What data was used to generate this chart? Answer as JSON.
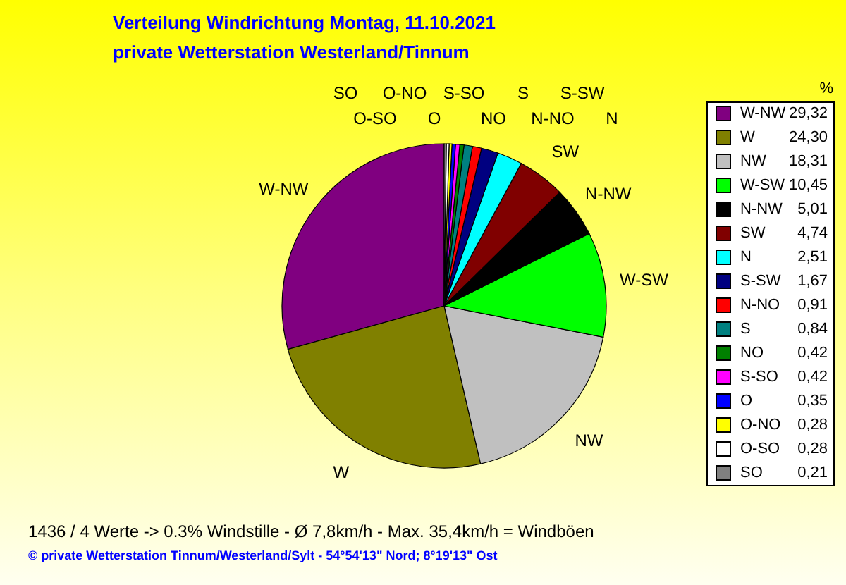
{
  "chart_data": {
    "type": "pie",
    "title": "Verteilung Windrichtung   Montag, 11.10.2021",
    "subtitle": "private Wetterstation Westerland/Tinnum",
    "legend_title": "%",
    "legend": "right",
    "categories": [
      "W-NW",
      "W",
      "NW",
      "W-SW",
      "N-NW",
      "SW",
      "N",
      "S-SW",
      "N-NO",
      "S",
      "NO",
      "S-SO",
      "O",
      "O-NO",
      "O-SO",
      "SO"
    ],
    "values": [
      29.32,
      24.3,
      18.31,
      10.45,
      5.01,
      4.74,
      2.51,
      1.67,
      0.91,
      0.84,
      0.42,
      0.42,
      0.35,
      0.28,
      0.28,
      0.21
    ],
    "value_labels": [
      "29,32",
      "24,30",
      "18,31",
      "10,45",
      "5,01",
      "4,74",
      "2,51",
      "1,67",
      "0,91",
      "0,84",
      "0,42",
      "0,42",
      "0,35",
      "0,28",
      "0,28",
      "0,21"
    ],
    "colors": [
      "#800080",
      "#808000",
      "#c0c0c0",
      "#00ff00",
      "#000000",
      "#800000",
      "#00ffff",
      "#000080",
      "#ff0000",
      "#008080",
      "#008000",
      "#ff00ff",
      "#0000ff",
      "#ffff00",
      "#ffffff",
      "#808080"
    ],
    "annotations": [
      "1436 / 4 Werte  -> 0.3% Windstille   -   Ø 7,8km/h  -  Max. 35,4km/h = Windböen",
      "© private Wetterstation Tinnum/Westerland/Sylt  -  54°54'13\" Nord; 8°19'13\" Ost"
    ]
  }
}
